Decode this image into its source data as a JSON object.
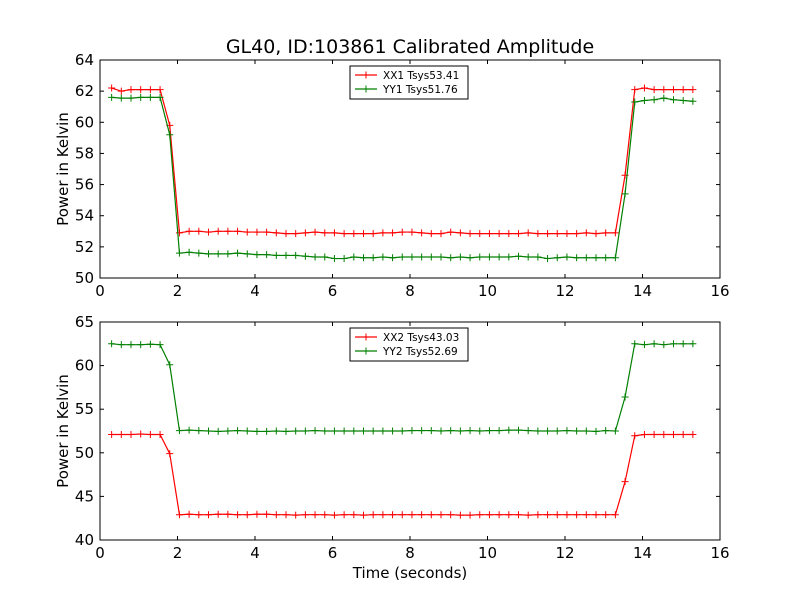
{
  "chart_data": [
    {
      "type": "line",
      "title": "GL40, ID:103861 Calibrated Amplitude",
      "xlabel": "",
      "ylabel": "Power in Kelvin",
      "xlim": [
        0,
        16
      ],
      "ylim": [
        50,
        64
      ],
      "xticks": [
        0,
        2,
        4,
        6,
        8,
        10,
        12,
        14,
        16
      ],
      "yticks": [
        50,
        52,
        54,
        56,
        58,
        60,
        62,
        64
      ],
      "legend_position": "top-center",
      "grid": false,
      "x": [
        0.3,
        0.55,
        0.8,
        1.05,
        1.3,
        1.55,
        1.8,
        2.05,
        2.3,
        2.55,
        2.8,
        3.05,
        3.3,
        3.55,
        3.8,
        4.05,
        4.3,
        4.55,
        4.8,
        5.05,
        5.3,
        5.55,
        5.8,
        6.05,
        6.3,
        6.55,
        6.8,
        7.05,
        7.3,
        7.55,
        7.8,
        8.05,
        8.3,
        8.55,
        8.8,
        9.05,
        9.3,
        9.55,
        9.8,
        10.05,
        10.3,
        10.55,
        10.8,
        11.05,
        11.3,
        11.55,
        11.8,
        12.05,
        12.3,
        12.55,
        12.8,
        13.05,
        13.3,
        13.55,
        13.8,
        14.05,
        14.3,
        14.55,
        14.8,
        15.05,
        15.3
      ],
      "series": [
        {
          "name": "XX1 Tsys53.41",
          "color": "#ff0000",
          "values": [
            62.2,
            62.0,
            62.1,
            62.1,
            62.1,
            62.1,
            59.8,
            52.9,
            53.0,
            53.0,
            52.95,
            53.0,
            53.0,
            53.0,
            52.95,
            52.95,
            52.95,
            52.9,
            52.85,
            52.85,
            52.9,
            52.95,
            52.9,
            52.9,
            52.85,
            52.85,
            52.85,
            52.85,
            52.9,
            52.9,
            52.95,
            52.95,
            52.9,
            52.85,
            52.85,
            52.95,
            52.9,
            52.85,
            52.85,
            52.85,
            52.85,
            52.85,
            52.85,
            52.9,
            52.85,
            52.85,
            52.85,
            52.85,
            52.85,
            52.9,
            52.85,
            52.9,
            52.9,
            56.6,
            62.1,
            62.2,
            62.1,
            62.1,
            62.1,
            62.1,
            62.1
          ]
        },
        {
          "name": "YY1 Tsys51.76",
          "color": "#008000",
          "values": [
            61.6,
            61.55,
            61.55,
            61.6,
            61.6,
            61.6,
            59.2,
            51.6,
            51.65,
            51.6,
            51.55,
            51.55,
            51.55,
            51.6,
            51.55,
            51.5,
            51.5,
            51.45,
            51.45,
            51.45,
            51.4,
            51.35,
            51.35,
            51.25,
            51.25,
            51.35,
            51.3,
            51.3,
            51.35,
            51.3,
            51.35,
            51.35,
            51.35,
            51.35,
            51.35,
            51.3,
            51.35,
            51.3,
            51.35,
            51.35,
            51.35,
            51.35,
            51.4,
            51.35,
            51.35,
            51.25,
            51.3,
            51.35,
            51.3,
            51.3,
            51.3,
            51.3,
            51.3,
            55.4,
            61.3,
            61.4,
            61.45,
            61.55,
            61.45,
            61.4,
            61.35
          ]
        }
      ]
    },
    {
      "type": "line",
      "title": "",
      "xlabel": "Time (seconds)",
      "ylabel": "Power in Kelvin",
      "xlim": [
        0,
        16
      ],
      "ylim": [
        40,
        65
      ],
      "xticks": [
        0,
        2,
        4,
        6,
        8,
        10,
        12,
        14,
        16
      ],
      "yticks": [
        40,
        45,
        50,
        55,
        60,
        65
      ],
      "legend_position": "top-center",
      "grid": false,
      "x": [
        0.3,
        0.55,
        0.8,
        1.05,
        1.3,
        1.55,
        1.8,
        2.05,
        2.3,
        2.55,
        2.8,
        3.05,
        3.3,
        3.55,
        3.8,
        4.05,
        4.3,
        4.55,
        4.8,
        5.05,
        5.3,
        5.55,
        5.8,
        6.05,
        6.3,
        6.55,
        6.8,
        7.05,
        7.3,
        7.55,
        7.8,
        8.05,
        8.3,
        8.55,
        8.8,
        9.05,
        9.3,
        9.55,
        9.8,
        10.05,
        10.3,
        10.55,
        10.8,
        11.05,
        11.3,
        11.55,
        11.8,
        12.05,
        12.3,
        12.55,
        12.8,
        13.05,
        13.3,
        13.55,
        13.8,
        14.05,
        14.3,
        14.55,
        14.8,
        15.05,
        15.3
      ],
      "series": [
        {
          "name": "XX2 Tsys43.03",
          "color": "#ff0000",
          "values": [
            52.1,
            52.1,
            52.1,
            52.15,
            52.1,
            52.1,
            49.9,
            42.9,
            42.95,
            42.9,
            42.9,
            42.95,
            42.95,
            42.9,
            42.9,
            42.95,
            42.95,
            42.9,
            42.9,
            42.85,
            42.9,
            42.9,
            42.9,
            42.85,
            42.9,
            42.9,
            42.85,
            42.9,
            42.9,
            42.9,
            42.9,
            42.9,
            42.9,
            42.9,
            42.9,
            42.9,
            42.85,
            42.85,
            42.9,
            42.9,
            42.9,
            42.9,
            42.9,
            42.85,
            42.9,
            42.9,
            42.9,
            42.9,
            42.9,
            42.9,
            42.9,
            42.9,
            42.9,
            46.7,
            51.95,
            52.1,
            52.1,
            52.1,
            52.1,
            52.1,
            52.1
          ]
        },
        {
          "name": "YY2 Tsys52.69",
          "color": "#008000",
          "values": [
            62.5,
            62.4,
            62.4,
            62.4,
            62.45,
            62.4,
            60.1,
            52.55,
            52.6,
            52.55,
            52.5,
            52.45,
            52.5,
            52.55,
            52.5,
            52.45,
            52.45,
            52.5,
            52.45,
            52.5,
            52.5,
            52.55,
            52.5,
            52.5,
            52.5,
            52.5,
            52.5,
            52.5,
            52.5,
            52.5,
            52.5,
            52.55,
            52.55,
            52.55,
            52.5,
            52.55,
            52.5,
            52.55,
            52.5,
            52.55,
            52.55,
            52.6,
            52.6,
            52.55,
            52.5,
            52.5,
            52.5,
            52.55,
            52.5,
            52.5,
            52.45,
            52.55,
            52.5,
            56.4,
            62.5,
            62.4,
            62.5,
            62.4,
            62.5,
            62.5,
            62.5
          ]
        }
      ]
    }
  ]
}
